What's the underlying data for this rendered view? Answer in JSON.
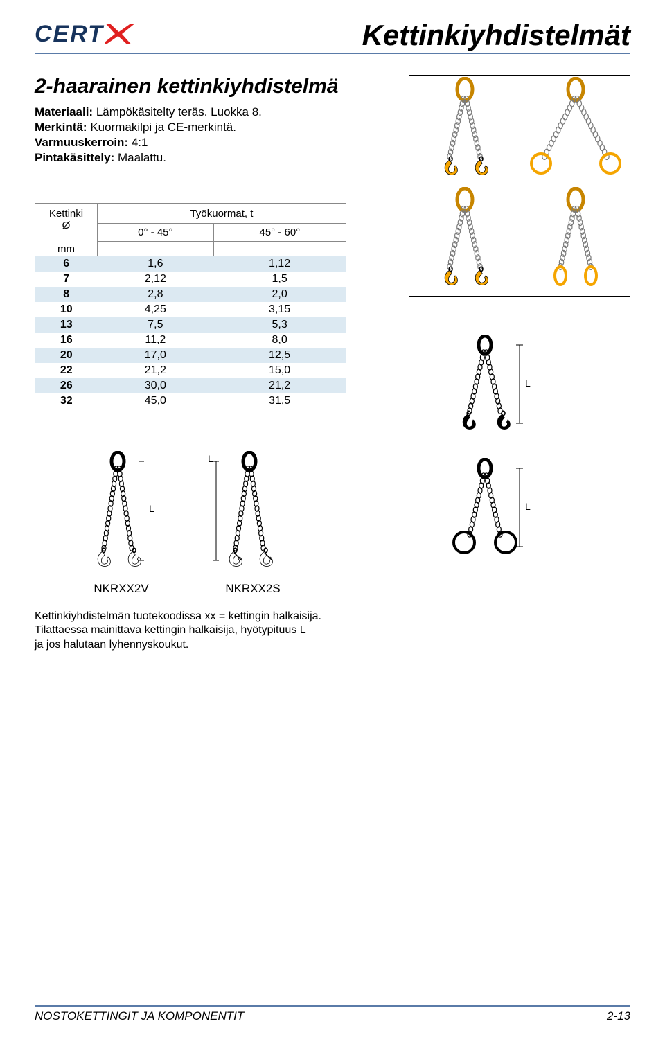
{
  "logo": {
    "cert": "CERT",
    "x": "X"
  },
  "page_title": "Kettinkiyhdistelmät",
  "section": {
    "title": "2-haarainen kettinkiyhdistelmä",
    "specs": [
      {
        "key": "Materiaali:",
        "value": "Lämpökäsitelty teräs. Luokka 8."
      },
      {
        "key": "Merkintä:",
        "value": "Kuormakilpi ja CE-merkintä."
      },
      {
        "key": "Varmuuskerroin:",
        "value": "4:1"
      },
      {
        "key": "Pintakäsittely:",
        "value": "Maalattu."
      }
    ]
  },
  "table": {
    "header_left_line1": "Kettinki",
    "header_left_line2": "Ø",
    "header_top": "Työkuormat, t",
    "header_sub1": "0° - 45°",
    "header_sub2": "45° - 60°",
    "unit": "mm",
    "stripe_color": "#dce9f2",
    "border_color": "#888888",
    "rows": [
      {
        "d": "6",
        "a": "1,6",
        "b": "1,12"
      },
      {
        "d": "7",
        "a": "2,12",
        "b": "1,5"
      },
      {
        "d": "8",
        "a": "2,8",
        "b": "2,0"
      },
      {
        "d": "10",
        "a": "4,25",
        "b": "3,15"
      },
      {
        "d": "13",
        "a": "7,5",
        "b": "5,3"
      },
      {
        "d": "16",
        "a": "11,2",
        "b": "8,0"
      },
      {
        "d": "20",
        "a": "17,0",
        "b": "12,5"
      },
      {
        "d": "22",
        "a": "21,2",
        "b": "15,0"
      },
      {
        "d": "26",
        "a": "30,0",
        "b": "21,2"
      },
      {
        "d": "32",
        "a": "45,0",
        "b": "31,5"
      }
    ]
  },
  "icons_box": {
    "link_fill": "#f5a500",
    "chain_color": "#7a7a7a",
    "hook_fill": "#f5a500",
    "items": [
      {
        "end": "hook",
        "legs": "narrow"
      },
      {
        "end": "ring",
        "legs": "wide"
      },
      {
        "end": "hook_angled",
        "legs": "narrow"
      },
      {
        "end": "oval",
        "legs": "narrow"
      }
    ]
  },
  "side_diagrams": {
    "label_L": "L",
    "items": [
      {
        "end": "hook",
        "lw": true
      },
      {
        "end": "ring",
        "lw": true
      }
    ]
  },
  "bottom_diagrams": {
    "label_L": "L",
    "items": [
      {
        "code": "NKRXX2V",
        "end": "hook"
      },
      {
        "code": "NKRXX2S",
        "end": "hook_safety"
      }
    ]
  },
  "note": {
    "line1": "Kettinkiyhdistelmän tuotekoodissa xx = kettingin halkaisija.",
    "line2": "Tilattaessa mainittava kettingin halkaisija, hyötypituus L",
    "line3": "ja jos halutaan lyhennyskoukut."
  },
  "footer": {
    "left": "NOSTOKETTINGIT JA KOMPONENTIT",
    "right": "2-13"
  }
}
